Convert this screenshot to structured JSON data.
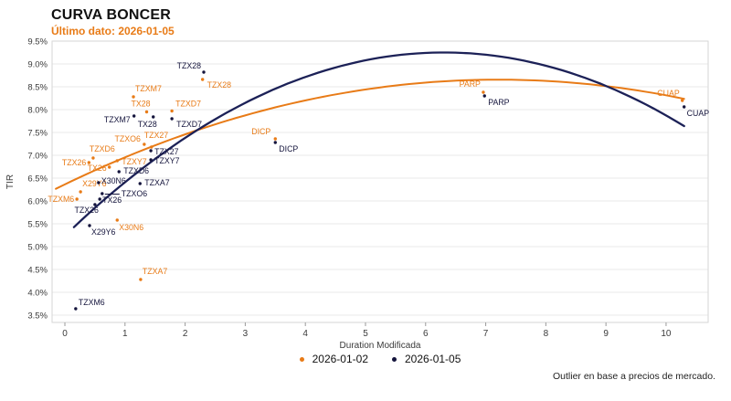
{
  "header": {
    "title": "CURVA BONCER",
    "subtitle": "Último dato: 2026-01-05"
  },
  "colors": {
    "orange": "#e87b17",
    "navy": "#1c2157",
    "navy_point": "#14143c",
    "grid": "#e9e9e9",
    "border": "#d6d6d6",
    "tick_text": "#3a3a3a",
    "axis_title": "#3a3a3a"
  },
  "footer": {
    "note": "Outlier en base a precios de mercado."
  },
  "chart_data": {
    "type": "scatter",
    "title": "CURVA BONCER",
    "subtitle": "Último dato: 2026-01-05",
    "xlabel": "Duration Modificada",
    "ylabel": "TIR",
    "xlim": [
      -0.213,
      10.7
    ],
    "ylim": [
      3.34,
      9.5
    ],
    "x_ticks": [
      0,
      1,
      2,
      3,
      4,
      5,
      6,
      7,
      8,
      9,
      10
    ],
    "y_ticks": [
      {
        "v": 9.5,
        "label": "9.5%"
      },
      {
        "v": 9.0,
        "label": "9.0%"
      },
      {
        "v": 8.5,
        "label": "8.5%"
      },
      {
        "v": 8.0,
        "label": "8.0%"
      },
      {
        "v": 7.5,
        "label": "7.5%"
      },
      {
        "v": 7.0,
        "label": "7.0%"
      },
      {
        "v": 6.5,
        "label": "6.5%"
      },
      {
        "v": 6.0,
        "label": "6.0%"
      },
      {
        "v": 5.5,
        "label": "5.5%"
      },
      {
        "v": 5.0,
        "label": "5.0%"
      },
      {
        "v": 4.5,
        "label": "4.5%"
      },
      {
        "v": 4.0,
        "label": "4.0%"
      },
      {
        "v": 3.5,
        "label": "3.5%"
      }
    ],
    "grid": "horizontal",
    "legend_position": "bottom-center",
    "series": [
      {
        "name": "2026-01-02",
        "color_key": "orange",
        "fit_curve": {
          "x_start": -0.15,
          "x_end": 10.3,
          "coef": [
            6.363,
            0.636,
            -0.0441
          ],
          "width": 2
        },
        "points": [
          {
            "label": "TZXM6",
            "x": 0.2,
            "y": 6.04,
            "dx": -3,
            "dy": 3,
            "anchor": "end"
          },
          {
            "label": "X29Y6",
            "x": 0.26,
            "y": 6.2,
            "dx": 2,
            "dy": -6,
            "anchor": "start"
          },
          {
            "label": "TZX26",
            "x": 0.4,
            "y": 6.84,
            "dx": -3,
            "dy": 3,
            "anchor": "end"
          },
          {
            "label": "TZXD6",
            "x": 0.47,
            "y": 6.94,
            "dx": -4,
            "dy": -7,
            "anchor": "start"
          },
          {
            "label": "TX26",
            "x": 0.74,
            "y": 6.74,
            "dx": -3,
            "dy": 4,
            "anchor": "end"
          },
          {
            "label": "TZXY7",
            "x": 0.87,
            "y": 6.88,
            "dx": 5,
            "dy": 4,
            "anchor": "start"
          },
          {
            "label": "X30N6",
            "x": 0.87,
            "y": 5.58,
            "dx": 2,
            "dy": 11,
            "anchor": "start"
          },
          {
            "label": "TZXM7",
            "x": 1.14,
            "y": 8.28,
            "dx": 2,
            "dy": -6,
            "anchor": "start"
          },
          {
            "label": "TX28",
            "x": 1.36,
            "y": 7.95,
            "dx": 4,
            "dy": -6,
            "anchor": "end"
          },
          {
            "label": "TZX27",
            "x": 1.44,
            "y": 7.18,
            "dx": -8,
            "dy": -10,
            "anchor": "start"
          },
          {
            "label": "TZXO6",
            "x": 1.32,
            "y": 7.24,
            "dx": -4,
            "dy": -3,
            "anchor": "end"
          },
          {
            "label": "TZXD7",
            "x": 1.78,
            "y": 7.97,
            "dx": 4,
            "dy": -5,
            "anchor": "start"
          },
          {
            "label": "TZXA7",
            "x": 1.26,
            "y": 4.28,
            "dx": 2,
            "dy": -6,
            "anchor": "start"
          },
          {
            "label": "TZX28",
            "x": 2.29,
            "y": 8.66,
            "dx": 5,
            "dy": 9,
            "anchor": "start"
          },
          {
            "label": "DICP",
            "x": 3.5,
            "y": 7.36,
            "dx": -5,
            "dy": -5,
            "anchor": "end"
          },
          {
            "label": "PARP",
            "x": 6.96,
            "y": 8.38,
            "dx": -3,
            "dy": -6,
            "anchor": "end"
          },
          {
            "label": "CUAP",
            "x": 10.27,
            "y": 8.2,
            "dx": -3,
            "dy": -5,
            "anchor": "end"
          }
        ]
      },
      {
        "name": "2026-01-05",
        "color_key": "navy",
        "fit_curve": {
          "x_start": 0.15,
          "x_end": 10.3,
          "coef": [
            5.238,
            1.2729,
            -0.10094
          ],
          "width": 2.3
        },
        "points": [
          {
            "label": "TZXM6",
            "x": 0.18,
            "y": 3.64,
            "dx": 3,
            "dy": -4,
            "anchor": "start"
          },
          {
            "label": "X29Y6",
            "x": 0.41,
            "y": 5.46,
            "dx": 2,
            "dy": 10,
            "anchor": "start"
          },
          {
            "label": "TZX26",
            "x": 0.5,
            "y": 5.92,
            "dx": 4,
            "dy": 9,
            "anchor": "end"
          },
          {
            "label": "TX26",
            "x": 0.58,
            "y": 6.04,
            "dx": 3,
            "dy": 4,
            "anchor": "start"
          },
          {
            "label": "TZXO6",
            "x": 0.62,
            "y": 6.16,
            "dx": 21,
            "dy": 3,
            "anchor": "start",
            "leader": true
          },
          {
            "label": "X30N6",
            "x": 0.56,
            "y": 6.4,
            "dx": 3,
            "dy": 1,
            "anchor": "start"
          },
          {
            "label": "TZXD6",
            "x": 0.9,
            "y": 6.64,
            "dx": 5,
            "dy": 2,
            "anchor": "start"
          },
          {
            "label": "TZXA7",
            "x": 1.25,
            "y": 6.38,
            "dx": 5,
            "dy": 2,
            "anchor": "start"
          },
          {
            "label": "TZXY7",
            "x": 1.43,
            "y": 6.9,
            "dx": 4,
            "dy": 4,
            "anchor": "start"
          },
          {
            "label": "TZX27",
            "x": 1.43,
            "y": 7.1,
            "dx": 4,
            "dy": 4,
            "anchor": "start"
          },
          {
            "label": "TZXM7",
            "x": 1.15,
            "y": 7.86,
            "dx": -4,
            "dy": 7,
            "anchor": "end"
          },
          {
            "label": "TX28",
            "x": 1.47,
            "y": 7.84,
            "dx": 4,
            "dy": 11,
            "anchor": "end"
          },
          {
            "label": "TZXD7",
            "x": 1.78,
            "y": 7.8,
            "dx": 5,
            "dy": 9,
            "anchor": "start"
          },
          {
            "label": "TZX28",
            "x": 2.31,
            "y": 8.82,
            "dx": -3,
            "dy": -4,
            "anchor": "end"
          },
          {
            "label": "DICP",
            "x": 3.5,
            "y": 7.28,
            "dx": 4,
            "dy": 10,
            "anchor": "start"
          },
          {
            "label": "PARP",
            "x": 6.98,
            "y": 8.3,
            "dx": 4,
            "dy": 10,
            "anchor": "start"
          },
          {
            "label": "CUAP",
            "x": 10.3,
            "y": 8.06,
            "dx": 3,
            "dy": 10,
            "anchor": "start"
          }
        ]
      }
    ]
  }
}
